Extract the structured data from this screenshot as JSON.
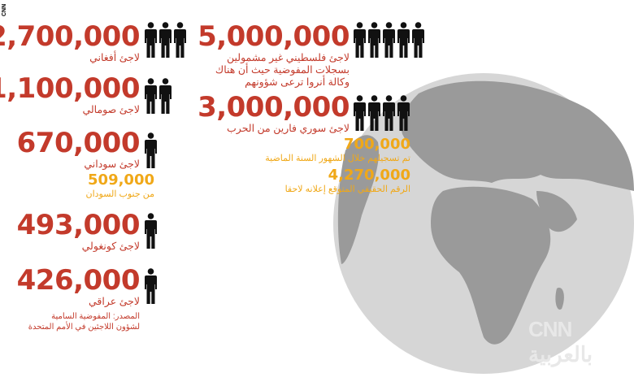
{
  "brand_tag": "CNN",
  "logo": "CNN بالعربية",
  "colors": {
    "primary_red": "#c33a2b",
    "highlight_orange": "#f0a818",
    "icon": "#111111",
    "globe": "#9a9a9a"
  },
  "left": [
    {
      "number": "2,700,000",
      "label": "لاجئ أفغاني",
      "icons": 3
    },
    {
      "number": "1,100,000",
      "label": "لاجئ صومالي",
      "icons": 2
    },
    {
      "number": "670,000",
      "label": "لاجئ سوداني",
      "icons": 1,
      "sub_number": "509,000",
      "sub_label": "من جنوب السودان"
    },
    {
      "number": "493,000",
      "label": "لاجئ كونغولي",
      "icons": 1
    },
    {
      "number": "426,000",
      "label": "لاجئ عراقي",
      "icons": 1
    }
  ],
  "source": [
    "المصدر: المفوضية السامية",
    "لشؤون اللاجئين في الأمم المتحدة"
  ],
  "right": [
    {
      "number": "5,000,000",
      "label_lines": [
        "لاجئ فلسطيني غير مشمولين",
        "بسجلات المفوضية حيث أن هناك",
        "وكالة أنروا ترعى شؤونهم"
      ],
      "icons": 5
    },
    {
      "number": "3,000,000",
      "label": "لاجئ سوري فارين من الحرب",
      "icons": 4,
      "notes": [
        {
          "number": "700,000",
          "label": "تم تسجيلهم خلال الشهور السنة الماضية"
        },
        {
          "number": "4,270,000",
          "label": "الرقم الحقيقي المتوقع إعلانه لاحقا"
        }
      ]
    }
  ]
}
